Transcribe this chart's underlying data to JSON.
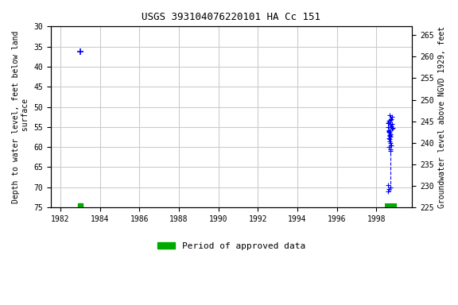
{
  "title": "USGS 393104076220101 HA Cc 151",
  "xlabel": "",
  "ylabel_left": "Depth to water level, feet below land\n surface",
  "ylabel_right": "Groundwater level above NGVD 1929, feet",
  "ylim_left": [
    75,
    30
  ],
  "ylim_right": [
    225,
    267
  ],
  "xlim": [
    1981.5,
    1999.8
  ],
  "xticks": [
    1982,
    1984,
    1986,
    1988,
    1990,
    1992,
    1994,
    1996,
    1998
  ],
  "yticks_left": [
    30,
    35,
    40,
    45,
    50,
    55,
    60,
    65,
    70,
    75
  ],
  "yticks_right": [
    225,
    230,
    235,
    240,
    245,
    250,
    255,
    260,
    265
  ],
  "grid_color": "#cccccc",
  "background_color": "#ffffff",
  "point_color_blue": "#0000ff",
  "legend_color": "#00aa00",
  "legend_label": "Period of approved data",
  "single_point_x": 1983.0,
  "single_point_y": 36.2,
  "single_green_x": 1983.0,
  "single_green_y": 74.5,
  "cluster_x_center": 1998.7,
  "cluster_depth_values": [
    52.0,
    52.5,
    53.0,
    53.2,
    53.5,
    53.8,
    54.0,
    54.2,
    54.5,
    54.8,
    55.0,
    55.2,
    55.5,
    55.8,
    56.0,
    56.2,
    56.5,
    56.8,
    57.0,
    57.2,
    57.5,
    57.8,
    58.0,
    58.5,
    59.0,
    59.5,
    60.0,
    60.5,
    61.0,
    69.5,
    70.0,
    70.5,
    71.0
  ],
  "green_bar_x": 1998.7,
  "green_bar_y": 74.5,
  "font_family": "monospace"
}
